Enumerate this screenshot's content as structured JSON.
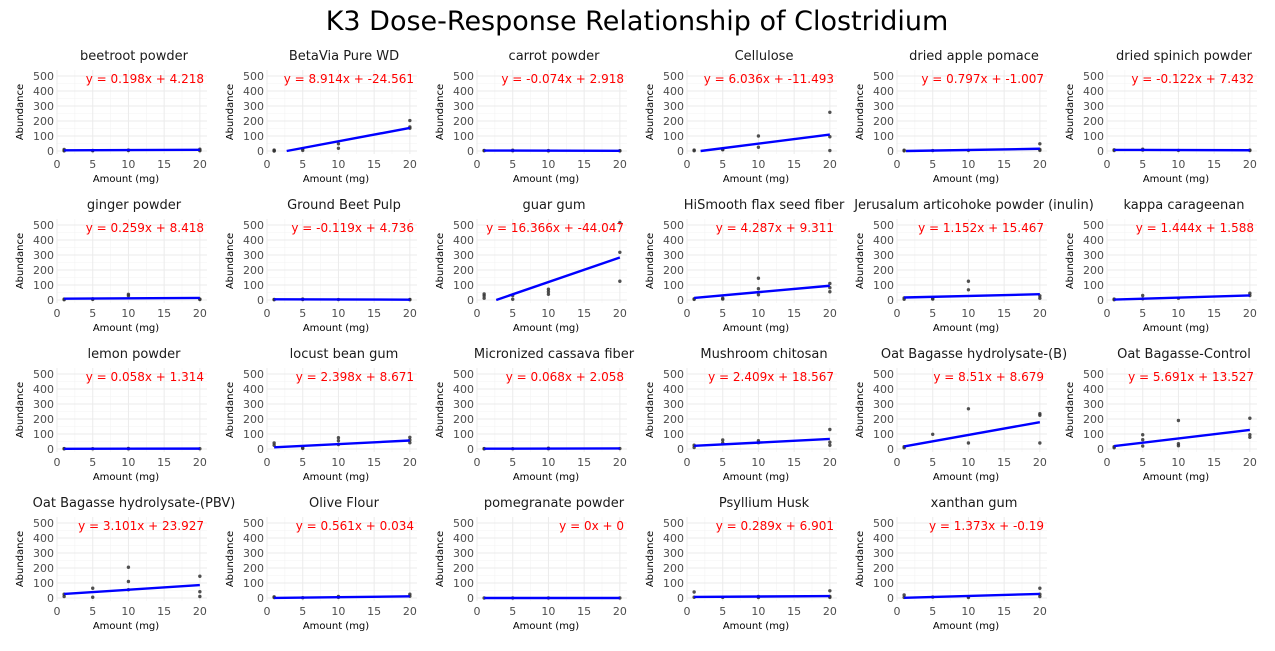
{
  "title": "K3 Dose-Response Relationship of Clostridium",
  "colors": {
    "line": "#0000ff",
    "equation": "#ff0000",
    "point": "#333333",
    "grid": "#ebebeb",
    "text": "#4d4d4d"
  },
  "chart_data": {
    "type": "scatter",
    "layout": "facet-grid",
    "xlabel": "Amount (mg)",
    "ylabel": "Abundance",
    "xlim": [
      0,
      21
    ],
    "ylim": [
      -20,
      540
    ],
    "x_ticks": [
      0,
      5,
      10,
      15,
      20
    ],
    "y_ticks": [
      0,
      100,
      200,
      300,
      400,
      500
    ],
    "grid": true,
    "panels": [
      {
        "name": "beetroot powder",
        "equation": "y = 0.198x + 4.218",
        "slope": 0.198,
        "intercept": 4.218,
        "points": [
          [
            1,
            3
          ],
          [
            1,
            10
          ],
          [
            1,
            1
          ],
          [
            5,
            2
          ],
          [
            5,
            4
          ],
          [
            10,
            6
          ],
          [
            10,
            3
          ],
          [
            20,
            6
          ],
          [
            20,
            12
          ],
          [
            20,
            2
          ]
        ]
      },
      {
        "name": "BetaVia Pure WD",
        "equation": "y = 8.914x + -24.561",
        "slope": 8.914,
        "intercept": -24.561,
        "points": [
          [
            1,
            2
          ],
          [
            1,
            6
          ],
          [
            1,
            0
          ],
          [
            5,
            4
          ],
          [
            5,
            15
          ],
          [
            10,
            48
          ],
          [
            10,
            18
          ],
          [
            20,
            203
          ],
          [
            20,
            160
          ],
          [
            20,
            152
          ]
        ]
      },
      {
        "name": "carrot powder",
        "equation": "y = -0.074x + 2.918",
        "slope": -0.074,
        "intercept": 2.918,
        "points": [
          [
            1,
            2
          ],
          [
            1,
            4
          ],
          [
            5,
            2
          ],
          [
            5,
            5
          ],
          [
            10,
            1
          ],
          [
            10,
            3
          ],
          [
            20,
            1
          ],
          [
            20,
            2
          ]
        ]
      },
      {
        "name": "Cellulose",
        "equation": "y = 6.036x + -11.493",
        "slope": 6.036,
        "intercept": -11.493,
        "points": [
          [
            1,
            2
          ],
          [
            1,
            6
          ],
          [
            5,
            8
          ],
          [
            5,
            12
          ],
          [
            10,
            100
          ],
          [
            10,
            25
          ],
          [
            20,
            258
          ],
          [
            20,
            95
          ],
          [
            20,
            3
          ]
        ]
      },
      {
        "name": "dried apple pomace",
        "equation": "y = 0.797x + -1.007",
        "slope": 0.797,
        "intercept": -1.007,
        "points": [
          [
            1,
            5
          ],
          [
            1,
            1
          ],
          [
            5,
            3
          ],
          [
            10,
            4
          ],
          [
            20,
            48
          ],
          [
            20,
            10
          ],
          [
            20,
            4
          ]
        ]
      },
      {
        "name": "dried spinich powder",
        "equation": "y = -0.122x + 7.432",
        "slope": -0.122,
        "intercept": 7.432,
        "points": [
          [
            1,
            8
          ],
          [
            1,
            3
          ],
          [
            5,
            12
          ],
          [
            5,
            6
          ],
          [
            10,
            4
          ],
          [
            20,
            3
          ],
          [
            20,
            6
          ]
        ]
      },
      {
        "name": "ginger powder",
        "equation": "y = 0.259x + 8.418",
        "slope": 0.259,
        "intercept": 8.418,
        "points": [
          [
            1,
            2
          ],
          [
            1,
            6
          ],
          [
            5,
            8
          ],
          [
            5,
            4
          ],
          [
            10,
            38
          ],
          [
            10,
            28
          ],
          [
            20,
            6
          ],
          [
            20,
            3
          ]
        ]
      },
      {
        "name": "Ground Beet Pulp",
        "equation": "y = -0.119x + 4.736",
        "slope": -0.119,
        "intercept": 4.736,
        "points": [
          [
            1,
            4
          ],
          [
            1,
            2
          ],
          [
            5,
            6
          ],
          [
            5,
            3
          ],
          [
            10,
            3
          ],
          [
            20,
            2
          ],
          [
            20,
            4
          ]
        ]
      },
      {
        "name": "guar gum",
        "equation": "y = 16.366x + -44.047",
        "slope": 16.366,
        "intercept": -44.047,
        "points": [
          [
            1,
            28
          ],
          [
            1,
            12
          ],
          [
            1,
            40
          ],
          [
            5,
            5
          ],
          [
            5,
            30
          ],
          [
            10,
            72
          ],
          [
            10,
            55
          ],
          [
            10,
            38
          ],
          [
            20,
            515
          ],
          [
            20,
            318
          ],
          [
            20,
            125
          ]
        ]
      },
      {
        "name": "HiSmooth flax seed fiber",
        "equation": "y = 4.287x + 9.311",
        "slope": 4.287,
        "intercept": 9.311,
        "points": [
          [
            1,
            8
          ],
          [
            1,
            4
          ],
          [
            5,
            12
          ],
          [
            5,
            6
          ],
          [
            10,
            145
          ],
          [
            10,
            75
          ],
          [
            10,
            35
          ],
          [
            20,
            110
          ],
          [
            20,
            82
          ],
          [
            20,
            55
          ]
        ]
      },
      {
        "name": "Jerusalum articohoke powder (inulin)",
        "equation": "y = 1.152x + 15.467",
        "slope": 1.152,
        "intercept": 15.467,
        "points": [
          [
            1,
            5
          ],
          [
            1,
            14
          ],
          [
            5,
            6
          ],
          [
            5,
            10
          ],
          [
            10,
            125
          ],
          [
            10,
            68
          ],
          [
            20,
            28
          ],
          [
            20,
            12
          ]
        ]
      },
      {
        "name": "kappa carageenan",
        "equation": "y = 1.444x + 1.588",
        "slope": 1.444,
        "intercept": 1.588,
        "points": [
          [
            1,
            2
          ],
          [
            1,
            6
          ],
          [
            5,
            30
          ],
          [
            5,
            8
          ],
          [
            10,
            12
          ],
          [
            20,
            45
          ],
          [
            20,
            30
          ]
        ]
      },
      {
        "name": "lemon powder",
        "equation": "y = 0.058x + 1.314",
        "slope": 0.058,
        "intercept": 1.314,
        "points": [
          [
            1,
            1
          ],
          [
            1,
            3
          ],
          [
            5,
            2
          ],
          [
            10,
            4
          ],
          [
            10,
            1
          ],
          [
            20,
            2
          ]
        ]
      },
      {
        "name": "locust bean gum",
        "equation": "y = 2.398x + 8.671",
        "slope": 2.398,
        "intercept": 8.671,
        "points": [
          [
            1,
            40
          ],
          [
            1,
            25
          ],
          [
            5,
            8
          ],
          [
            5,
            4
          ],
          [
            10,
            75
          ],
          [
            10,
            55
          ],
          [
            10,
            30
          ],
          [
            20,
            78
          ],
          [
            20,
            60
          ],
          [
            20,
            42
          ]
        ]
      },
      {
        "name": "Micronized cassava fiber",
        "equation": "y = 0.068x + 2.058",
        "slope": 0.068,
        "intercept": 2.058,
        "points": [
          [
            1,
            1
          ],
          [
            1,
            3
          ],
          [
            5,
            2
          ],
          [
            10,
            5
          ],
          [
            10,
            2
          ],
          [
            20,
            3
          ]
        ]
      },
      {
        "name": "Mushroom chitosan",
        "equation": "y = 2.409x + 18.567",
        "slope": 2.409,
        "intercept": 18.567,
        "points": [
          [
            1,
            10
          ],
          [
            1,
            25
          ],
          [
            5,
            60
          ],
          [
            5,
            40
          ],
          [
            10,
            55
          ],
          [
            10,
            42
          ],
          [
            20,
            130
          ],
          [
            20,
            45
          ],
          [
            20,
            25
          ]
        ]
      },
      {
        "name": "Oat Bagasse hydrolysate-(B)",
        "equation": "y = 8.51x + 8.679",
        "slope": 8.51,
        "intercept": 8.679,
        "points": [
          [
            1,
            8
          ],
          [
            1,
            15
          ],
          [
            5,
            98
          ],
          [
            10,
            268
          ],
          [
            10,
            40
          ],
          [
            20,
            235
          ],
          [
            20,
            225
          ],
          [
            20,
            40
          ]
        ]
      },
      {
        "name": "Oat Bagasse-Control",
        "equation": "y = 5.691x + 13.527",
        "slope": 5.691,
        "intercept": 13.527,
        "points": [
          [
            1,
            15
          ],
          [
            1,
            8
          ],
          [
            5,
            95
          ],
          [
            5,
            62
          ],
          [
            5,
            20
          ],
          [
            10,
            190
          ],
          [
            10,
            35
          ],
          [
            10,
            22
          ],
          [
            20,
            205
          ],
          [
            20,
            95
          ],
          [
            20,
            78
          ]
        ]
      },
      {
        "name": "Oat Bagasse hydrolysate-(PBV)",
        "equation": "y = 3.101x + 23.927",
        "slope": 3.101,
        "intercept": 23.927,
        "points": [
          [
            1,
            25
          ],
          [
            1,
            10
          ],
          [
            5,
            65
          ],
          [
            5,
            5
          ],
          [
            10,
            205
          ],
          [
            10,
            110
          ],
          [
            10,
            55
          ],
          [
            20,
            145
          ],
          [
            20,
            42
          ],
          [
            20,
            10
          ]
        ]
      },
      {
        "name": "Olive Flour",
        "equation": "y = 0.561x + 0.034",
        "slope": 0.561,
        "intercept": 0.034,
        "points": [
          [
            1,
            3
          ],
          [
            1,
            8
          ],
          [
            5,
            2
          ],
          [
            10,
            10
          ],
          [
            10,
            4
          ],
          [
            20,
            25
          ],
          [
            20,
            12
          ]
        ]
      },
      {
        "name": "pomegranate powder",
        "equation": "y = 0x + 0",
        "slope": 0,
        "intercept": 0,
        "points": [
          [
            1,
            0
          ],
          [
            5,
            0
          ],
          [
            10,
            0
          ],
          [
            20,
            0
          ]
        ]
      },
      {
        "name": "Psyllium Husk",
        "equation": "y = 0.289x + 6.901",
        "slope": 0.289,
        "intercept": 6.901,
        "points": [
          [
            1,
            40
          ],
          [
            1,
            5
          ],
          [
            5,
            4
          ],
          [
            10,
            10
          ],
          [
            10,
            3
          ],
          [
            20,
            48
          ],
          [
            20,
            10
          ],
          [
            20,
            4
          ]
        ]
      },
      {
        "name": "xanthan gum",
        "equation": "y = 1.373x + -0.19",
        "slope": 1.373,
        "intercept": -0.19,
        "points": [
          [
            1,
            20
          ],
          [
            1,
            4
          ],
          [
            5,
            6
          ],
          [
            10,
            8
          ],
          [
            10,
            3
          ],
          [
            20,
            65
          ],
          [
            20,
            25
          ],
          [
            20,
            10
          ]
        ]
      }
    ]
  }
}
